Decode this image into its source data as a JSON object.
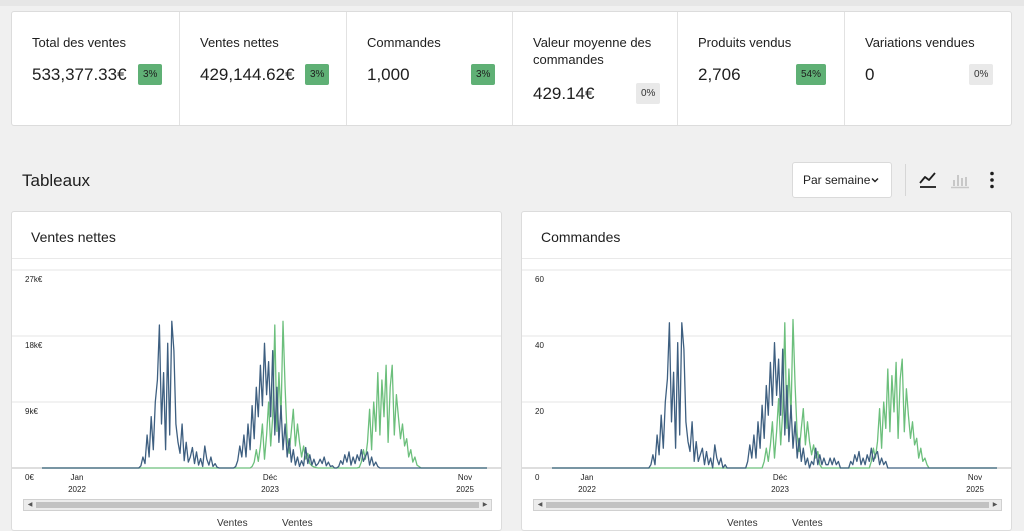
{
  "kpis": [
    {
      "label": "Total des ventes",
      "value": "533,377.33€",
      "delta": "3%",
      "trend": "up"
    },
    {
      "label": "Ventes nettes",
      "value": "429,144.62€",
      "delta": "3%",
      "trend": "up"
    },
    {
      "label": "Commandes",
      "value": "1,000",
      "delta": "3%",
      "trend": "up"
    },
    {
      "label": "Valeur moyenne des commandes",
      "value": "429.14€",
      "delta": "0%",
      "trend": "flat"
    },
    {
      "label": "Produits vendus",
      "value": "2,706",
      "delta": "54%",
      "trend": "up"
    },
    {
      "label": "Variations vendues",
      "value": "0",
      "delta": "0%",
      "trend": "flat"
    }
  ],
  "section": {
    "title": "Tableaux"
  },
  "interval": {
    "selected": "Par semaine"
  },
  "toolbar": {
    "line_icon": "line-chart-icon",
    "bar_icon": "bar-chart-icon",
    "menu_icon": "more-vertical-icon"
  },
  "colors": {
    "current": "#6cbf7c",
    "previous": "#3e5f80",
    "badge_up": "#5fb075"
  },
  "legend": {
    "current": "Ventes",
    "previous": "Ventes"
  },
  "chart_data": [
    {
      "type": "line",
      "title": "Ventes nettes",
      "yticks": [
        "0€",
        "9k€",
        "18k€",
        "27k€"
      ],
      "ylim": [
        0,
        27000
      ],
      "xticks": [
        {
          "label": "Jan",
          "year": "2022"
        },
        {
          "label": "Déc",
          "year": "2023"
        },
        {
          "label": "Nov",
          "year": "2025"
        }
      ],
      "x_range": [
        "2021-11",
        "2025-12"
      ],
      "grid": true,
      "series": [
        {
          "name": "Ventes",
          "color": "#6cbf7c",
          "segments": [
            {
              "start": 102,
              "values": [
                200,
                800,
                2500,
                900,
                3000,
                6000,
                1200,
                4500,
                9000,
                3000,
                7000,
                19500,
                5000,
                13000,
                7000,
                20000,
                11000,
                4000,
                2000,
                5000,
                8000,
                3000,
                6000,
                3500,
                1500,
                3000,
                1200,
                2000,
                600,
                300,
                150,
                50,
                0
              ]
            },
            {
              "start": 154,
              "values": [
                100,
                800,
                2500,
                1200,
                3500,
                8000,
                2500,
                9000,
                5000,
                13000,
                4500,
                12000,
                7000,
                14000,
                3500,
                11000,
                14000,
                4500,
                10000,
                7000,
                4000,
                6000,
                3000,
                4000,
                1500,
                2500,
                800,
                1500,
                400,
                200,
                0
              ]
            }
          ]
        },
        {
          "name": "Ventes",
          "color": "#3e5f80",
          "segments": [
            {
              "start": 48,
              "values": [
                300,
                1500,
                600,
                4500,
                1500,
                7000,
                2500,
                9000,
                12000,
                19500,
                6000,
                13000,
                2500,
                17000,
                4500,
                20000,
                16000,
                6000,
                3500,
                2000,
                6000,
                1000,
                3500,
                800,
                1500,
                2800,
                600,
                2200,
                400,
                1300,
                200,
                3000,
                1200,
                400,
                1500,
                200,
                600,
                100,
                0
              ]
            },
            {
              "start": 94,
              "values": [
                200,
                1000,
                3000,
                1500,
                4500,
                1500,
                6000,
                2500,
                8500,
                4000,
                11000,
                7000,
                14000,
                8500,
                17000,
                10000,
                14500,
                7000,
                16000,
                4500,
                11000,
                3500,
                8500,
                2500,
                6000,
                1500,
                4000,
                800,
                2500,
                400,
                1500,
                200,
                1000,
                300,
                2800,
                600,
                1800,
                400,
                1200,
                300,
                600,
                1200,
                600,
                1500,
                300,
                800,
                200,
                300,
                0
              ]
            },
            {
              "start": 144,
              "values": [
                200,
                1000,
                500,
                1800,
                800,
                2200,
                400,
                1500,
                600,
                1800,
                1000,
                2500,
                900,
                1600,
                2200,
                400,
                1500,
                300,
                800,
                200,
                0
              ]
            }
          ]
        }
      ]
    },
    {
      "type": "line",
      "title": "Commandes",
      "yticks": [
        "0",
        "20",
        "40",
        "60"
      ],
      "ylim": [
        0,
        60
      ],
      "xticks": [
        {
          "label": "Jan",
          "year": "2022"
        },
        {
          "label": "Déc",
          "year": "2023"
        },
        {
          "label": "Nov",
          "year": "2025"
        }
      ],
      "x_range": [
        "2021-11",
        "2025-12"
      ],
      "grid": true,
      "series": [
        {
          "name": "Ventes",
          "color": "#6cbf7c",
          "segments": [
            {
              "start": 102,
              "values": [
                0,
                2,
                6,
                2,
                7,
                14,
                3,
                11,
                21,
                7,
                17,
                44,
                12,
                30,
                16,
                45,
                25,
                10,
                5,
                12,
                18,
                7,
                14,
                8,
                4,
                7,
                3,
                5,
                1,
                0
              ]
            },
            {
              "start": 154,
              "values": [
                0,
                2,
                6,
                3,
                8,
                18,
                6,
                20,
                12,
                30,
                11,
                28,
                17,
                32,
                9,
                27,
                33,
                11,
                24,
                16,
                9,
                14,
                7,
                9,
                3,
                6,
                2,
                3,
                1,
                0
              ]
            }
          ]
        },
        {
          "name": "Ventes",
          "color": "#3e5f80",
          "segments": [
            {
              "start": 48,
              "values": [
                1,
                4,
                1,
                10,
                4,
                16,
                6,
                20,
                27,
                44,
                14,
                29,
                6,
                38,
                10,
                44,
                36,
                14,
                8,
                5,
                14,
                2,
                8,
                2,
                4,
                6,
                1,
                5,
                1,
                3,
                0,
                7,
                3,
                1,
                3,
                0,
                1,
                0
              ]
            },
            {
              "start": 94,
              "values": [
                0,
                2,
                7,
                3,
                10,
                3,
                14,
                6,
                19,
                9,
                25,
                16,
                32,
                19,
                38,
                22,
                33,
                16,
                36,
                10,
                25,
                8,
                19,
                6,
                14,
                3,
                9,
                2,
                6,
                1,
                3,
                0,
                2,
                1,
                6,
                1,
                4,
                1,
                3,
                1,
                1,
                3,
                1,
                3,
                1,
                2,
                0
              ]
            },
            {
              "start": 144,
              "values": [
                0,
                2,
                1,
                4,
                2,
                5,
                1,
                3,
                1,
                4,
                2,
                6,
                2,
                4,
                5,
                1,
                3,
                1,
                2,
                0
              ]
            }
          ]
        }
      ]
    }
  ]
}
